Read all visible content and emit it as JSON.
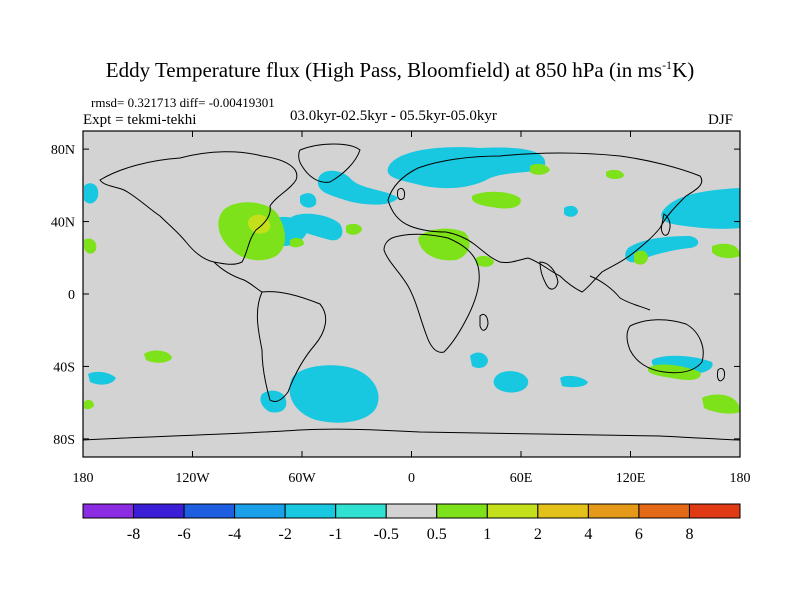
{
  "header": {
    "title_main": "Eddy Temperature flux (High Pass, Bloomfield) at 850 hPa (in ms",
    "title_sup": "-1",
    "title_end": "K)",
    "stats": "rmsd= 0.321713 diff= -0.00419301",
    "experiment": "Expt = tekmi-tekhi",
    "period": "03.0kyr-02.5kyr - 05.5kyr-05.0kyr",
    "season": "DJF"
  },
  "chart_data": {
    "type": "heatmap",
    "projection": "cylindrical-equidistant",
    "background_value_range": [
      -0.5,
      0.5
    ],
    "xlim": [
      -180,
      180
    ],
    "ylim": [
      -90,
      90
    ],
    "x_ticks": [
      {
        "value": -180,
        "label": "180"
      },
      {
        "value": -120,
        "label": "120W"
      },
      {
        "value": -60,
        "label": "60W"
      },
      {
        "value": 0,
        "label": "0"
      },
      {
        "value": 60,
        "label": "60E"
      },
      {
        "value": 120,
        "label": "120E"
      },
      {
        "value": 180,
        "label": "180"
      }
    ],
    "y_ticks": [
      {
        "value": 80,
        "label": "80N"
      },
      {
        "value": 40,
        "label": "40N"
      },
      {
        "value": 0,
        "label": "0"
      },
      {
        "value": -40,
        "label": "40S"
      },
      {
        "value": -80,
        "label": "80S"
      }
    ],
    "colorbar": {
      "levels": [
        "-8",
        "-6",
        "-4",
        "-2",
        "-1",
        "-0.5",
        "0.5",
        "1",
        "2",
        "4",
        "6",
        "8"
      ],
      "colors": [
        "#8b2be2",
        "#3b1fd6",
        "#1e5ee0",
        "#1aa0e8",
        "#18c8e0",
        "#30e0d0",
        "#d3d3d3",
        "#7ee21a",
        "#c4e01a",
        "#e4c01a",
        "#e49a18",
        "#e46a18",
        "#e03a14"
      ]
    },
    "regions": [
      {
        "value_class": "-1 to -0.5",
        "color": "#18c8e0",
        "area": "Arctic north of Scandinavia (approx. 5E-45E, 72N-80N)"
      },
      {
        "value_class": "-1 to -0.5",
        "color": "#18c8e0",
        "area": "Barents/northern Russia (approx. 0E-15E, 60N-68N)"
      },
      {
        "value_class": "-1 to -0.5",
        "color": "#18c8e0",
        "area": "North Pacific (approx. 140E-180, 30N-50N)"
      },
      {
        "value_class": "-1 to -0.5",
        "color": "#18c8e0",
        "area": "Western North Atlantic (approx. 50W-40W, 35N-45N)"
      },
      {
        "value_class": "-1 to -0.5",
        "color": "#18c8e0",
        "area": "South Atlantic off Argentina (approx. 65W-20W, 40S-60S)"
      },
      {
        "value_class": "-1 to -0.5",
        "color": "#18c8e0",
        "area": "Southern Indian Ocean (approx. 35E-60E, 40S-50S)"
      },
      {
        "value_class": "0.5 to 1",
        "color": "#7ee21a",
        "area": "Eastern USA (approx. 100W-75W, 30N-50N)"
      },
      {
        "value_class": "0.5 to 1",
        "color": "#7ee21a",
        "area": "Middle East (approx. 30E-50E, 25N-35N)"
      },
      {
        "value_class": "0.5 to 1",
        "color": "#7ee21a",
        "area": "Southern Australia / Tasman (approx. 130E-180, 30S-60S)"
      },
      {
        "value_class": "1 to 2",
        "color": "#c4e01a",
        "area": "Great Lakes region (approx. 85W-80W, 40N-45N)"
      }
    ]
  }
}
